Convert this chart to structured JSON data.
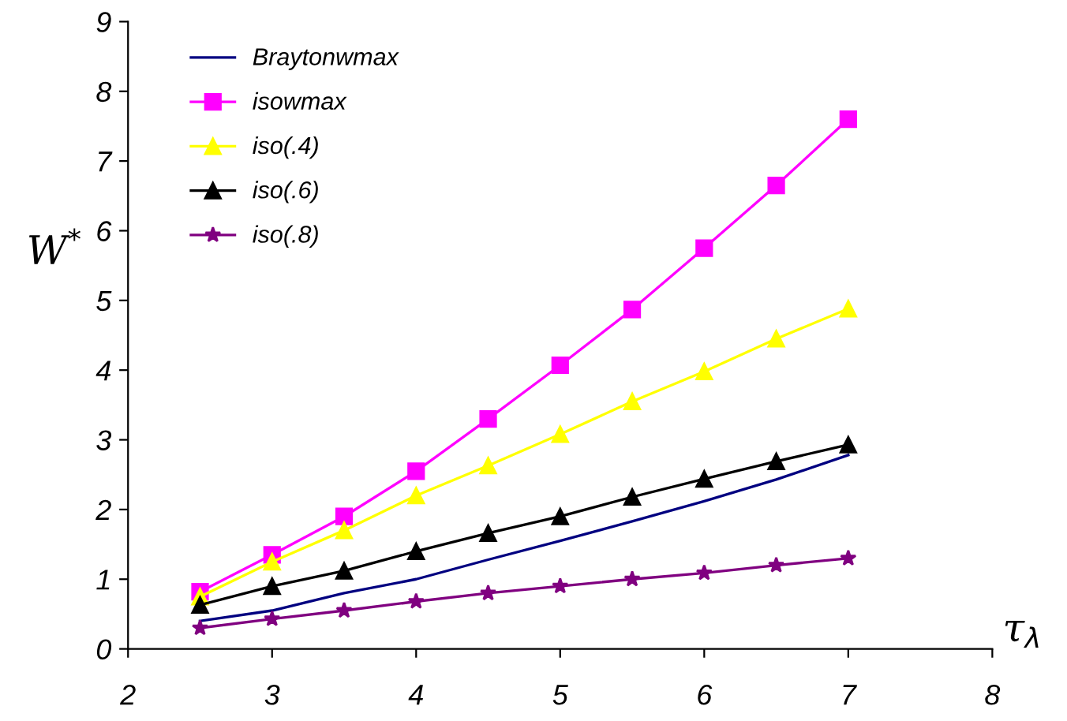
{
  "chart_data": {
    "type": "line",
    "xlabel": "τ$_{λ}$",
    "ylabel": "W$^{*}$",
    "x": [
      2.5,
      3,
      3.5,
      4,
      4.5,
      5,
      5.5,
      6,
      6.5,
      7
    ],
    "series": [
      {
        "name": "Braytonwmax",
        "color": "#000080",
        "marker": "none",
        "values": [
          0.4,
          0.55,
          0.8,
          1.0,
          1.28,
          1.55,
          1.83,
          2.12,
          2.43,
          2.78
        ]
      },
      {
        "name": "isowmax",
        "color": "#ff00ff",
        "marker": "square",
        "values": [
          0.82,
          1.35,
          1.9,
          2.55,
          3.3,
          4.07,
          4.87,
          5.75,
          6.65,
          7.6
        ]
      },
      {
        "name": "iso(.4)",
        "color": "#ffff00",
        "marker": "triangle",
        "values": [
          0.75,
          1.25,
          1.7,
          2.2,
          2.63,
          3.08,
          3.55,
          3.98,
          4.45,
          4.88
        ]
      },
      {
        "name": "iso(.6)",
        "color": "#000000",
        "marker": "triangle",
        "values": [
          0.63,
          0.9,
          1.12,
          1.4,
          1.66,
          1.9,
          2.18,
          2.44,
          2.69,
          2.93
        ]
      },
      {
        "name": "iso(.8)",
        "color": "#800080",
        "marker": "star",
        "values": [
          0.3,
          0.43,
          0.55,
          0.68,
          0.8,
          0.9,
          1.0,
          1.09,
          1.2,
          1.3
        ]
      }
    ],
    "xlim": [
      2,
      8
    ],
    "xticks": [
      2,
      3,
      4,
      5,
      6,
      7,
      8
    ],
    "ylim": [
      0,
      9
    ],
    "yticks": [
      0,
      1,
      2,
      3,
      4,
      5,
      6,
      7,
      8,
      9
    ],
    "grid": false,
    "legend": "top left",
    "line_style": "solid"
  }
}
